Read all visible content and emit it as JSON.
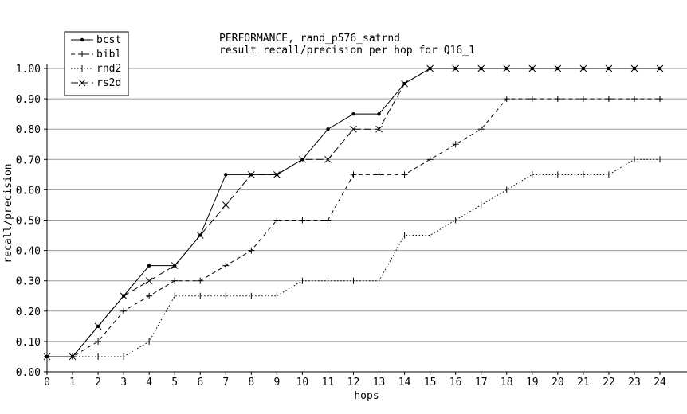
{
  "chart_data": {
    "type": "line",
    "title": "PERFORMANCE, rand_p576_satrnd",
    "subtitle": "result recall/precision per hop for Q16_1",
    "xlabel": "hops",
    "ylabel": "recall/precision",
    "x": [
      0,
      1,
      2,
      3,
      4,
      5,
      6,
      7,
      8,
      9,
      10,
      11,
      12,
      13,
      14,
      15,
      16,
      17,
      18,
      19,
      20,
      21,
      22,
      23,
      24
    ],
    "xlim": [
      0,
      24
    ],
    "ylim": [
      0,
      1.0
    ],
    "y_ticks": [
      "0.00",
      "0.10",
      "0.20",
      "0.30",
      "0.40",
      "0.50",
      "0.60",
      "0.70",
      "0.80",
      "0.90",
      "1.00"
    ],
    "grid": "horizontal",
    "legend_position": "top-left",
    "series": [
      {
        "name": "bcst",
        "marker": "dot",
        "dash": "solid",
        "values": [
          0.05,
          0.05,
          0.15,
          0.25,
          0.35,
          0.35,
          0.45,
          0.65,
          0.65,
          0.65,
          0.7,
          0.8,
          0.85,
          0.85,
          0.95,
          1.0,
          1.0,
          1.0,
          1.0,
          1.0,
          1.0,
          1.0,
          1.0,
          1.0,
          1.0
        ]
      },
      {
        "name": "bibl",
        "marker": "plus",
        "dash": "dashed",
        "values": [
          0.05,
          0.05,
          0.1,
          0.2,
          0.25,
          0.3,
          0.3,
          0.35,
          0.4,
          0.5,
          0.5,
          0.5,
          0.65,
          0.65,
          0.65,
          0.7,
          0.75,
          0.8,
          0.9,
          0.9,
          0.9,
          0.9,
          0.9,
          0.9,
          0.9
        ]
      },
      {
        "name": "rnd2",
        "marker": "tick",
        "dash": "dotted",
        "values": [
          0.05,
          0.05,
          0.05,
          0.05,
          0.1,
          0.25,
          0.25,
          0.25,
          0.25,
          0.25,
          0.3,
          0.3,
          0.3,
          0.3,
          0.45,
          0.45,
          0.5,
          0.55,
          0.6,
          0.65,
          0.65,
          0.65,
          0.65,
          0.7,
          0.7
        ]
      },
      {
        "name": "rs2d",
        "marker": "cross",
        "dash": "longdash",
        "values": [
          0.05,
          0.05,
          0.15,
          0.25,
          0.3,
          0.35,
          0.45,
          0.55,
          0.65,
          0.65,
          0.7,
          0.7,
          0.8,
          0.8,
          0.95,
          1.0,
          1.0,
          1.0,
          1.0,
          1.0,
          1.0,
          1.0,
          1.0,
          1.0,
          1.0
        ]
      }
    ]
  }
}
